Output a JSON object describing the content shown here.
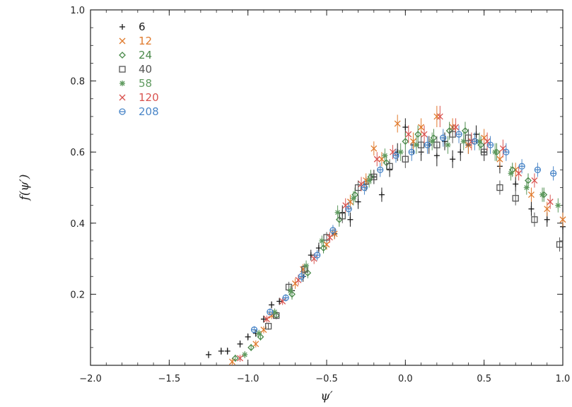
{
  "chart_data": {
    "type": "scatter",
    "title": "",
    "xlabel": "ψ′",
    "ylabel": "f(ψ′)",
    "xlim": [
      -2.0,
      1.0
    ],
    "ylim": [
      0.0,
      1.0
    ],
    "xticks": [
      -2.0,
      -1.5,
      -1.0,
      -0.5,
      0.0,
      0.5,
      1.0
    ],
    "xtick_labels": [
      "−2.0",
      "−1.5",
      "−1.0",
      "−0.5",
      "0.0",
      "0.5",
      "1.0"
    ],
    "yticks": [
      0.2,
      0.4,
      0.6,
      0.8,
      1.0
    ],
    "ytick_labels": [
      "0.2",
      "0.4",
      "0.6",
      "0.8",
      "1.0"
    ],
    "grid": false,
    "legend_position": "top-left",
    "error_bars": true,
    "series": [
      {
        "name": "6",
        "marker": "plus",
        "color": "#1a1a1a",
        "points": [
          [
            -1.25,
            0.03
          ],
          [
            -1.17,
            0.04
          ],
          [
            -1.13,
            0.04
          ],
          [
            -1.05,
            0.06
          ],
          [
            -1.0,
            0.08
          ],
          [
            -0.95,
            0.09
          ],
          [
            -0.9,
            0.13
          ],
          [
            -0.85,
            0.17
          ],
          [
            -0.8,
            0.18
          ],
          [
            -0.72,
            0.21
          ],
          [
            -0.65,
            0.25
          ],
          [
            -0.6,
            0.31
          ],
          [
            -0.55,
            0.33
          ],
          [
            -0.45,
            0.37
          ],
          [
            -0.4,
            0.43
          ],
          [
            -0.35,
            0.41
          ],
          [
            -0.3,
            0.46
          ],
          [
            -0.25,
            0.51
          ],
          [
            -0.2,
            0.53
          ],
          [
            -0.15,
            0.48
          ],
          [
            -0.1,
            0.55
          ],
          [
            -0.05,
            0.6
          ],
          [
            0.0,
            0.67
          ],
          [
            0.05,
            0.62
          ],
          [
            0.1,
            0.6
          ],
          [
            0.15,
            0.62
          ],
          [
            0.2,
            0.59
          ],
          [
            0.25,
            0.63
          ],
          [
            0.3,
            0.58
          ],
          [
            0.35,
            0.6
          ],
          [
            0.4,
            0.62
          ],
          [
            0.45,
            0.65
          ],
          [
            0.5,
            0.6
          ],
          [
            0.6,
            0.56
          ],
          [
            0.7,
            0.51
          ],
          [
            0.8,
            0.44
          ],
          [
            0.9,
            0.41
          ],
          [
            1.0,
            0.39
          ]
        ],
        "err": [
          0.01,
          0.01,
          0.01,
          0.01,
          0.01,
          0.01,
          0.01,
          0.01,
          0.01,
          0.01,
          0.015,
          0.015,
          0.015,
          0.015,
          0.02,
          0.02,
          0.02,
          0.02,
          0.02,
          0.02,
          0.02,
          0.025,
          0.025,
          0.025,
          0.025,
          0.025,
          0.03,
          0.025,
          0.025,
          0.025,
          0.025,
          0.025,
          0.025,
          0.02,
          0.02,
          0.02,
          0.02,
          0.02
        ]
      },
      {
        "name": "12",
        "marker": "cross",
        "color": "#e07a2c",
        "points": [
          [
            -1.1,
            0.01
          ],
          [
            -0.95,
            0.06
          ],
          [
            -0.9,
            0.1
          ],
          [
            -0.85,
            0.14
          ],
          [
            -0.7,
            0.23
          ],
          [
            -0.65,
            0.27
          ],
          [
            -0.5,
            0.34
          ],
          [
            -0.45,
            0.37
          ],
          [
            -0.35,
            0.46
          ],
          [
            -0.25,
            0.52
          ],
          [
            -0.2,
            0.61
          ],
          [
            -0.15,
            0.58
          ],
          [
            -0.05,
            0.68
          ],
          [
            0.05,
            0.63
          ],
          [
            0.1,
            0.67
          ],
          [
            0.2,
            0.7
          ],
          [
            0.3,
            0.67
          ],
          [
            0.4,
            0.62
          ],
          [
            0.5,
            0.64
          ],
          [
            0.6,
            0.58
          ],
          [
            0.7,
            0.55
          ],
          [
            0.8,
            0.48
          ],
          [
            0.9,
            0.44
          ],
          [
            1.0,
            0.41
          ]
        ],
        "err": [
          0.01,
          0.01,
          0.01,
          0.01,
          0.015,
          0.015,
          0.015,
          0.015,
          0.02,
          0.02,
          0.02,
          0.02,
          0.025,
          0.025,
          0.025,
          0.03,
          0.025,
          0.025,
          0.025,
          0.025,
          0.02,
          0.02,
          0.02,
          0.02
        ]
      },
      {
        "name": "24",
        "marker": "diamond",
        "color": "#4a8a4a",
        "points": [
          [
            -1.08,
            0.02
          ],
          [
            -0.98,
            0.05
          ],
          [
            -0.92,
            0.08
          ],
          [
            -0.82,
            0.14
          ],
          [
            -0.72,
            0.2
          ],
          [
            -0.62,
            0.26
          ],
          [
            -0.52,
            0.33
          ],
          [
            -0.42,
            0.41
          ],
          [
            -0.32,
            0.48
          ],
          [
            -0.22,
            0.53
          ],
          [
            -0.12,
            0.57
          ],
          [
            0.0,
            0.63
          ],
          [
            0.08,
            0.65
          ],
          [
            0.18,
            0.64
          ],
          [
            0.28,
            0.66
          ],
          [
            0.38,
            0.66
          ],
          [
            0.48,
            0.62
          ],
          [
            0.58,
            0.6
          ],
          [
            0.68,
            0.55
          ],
          [
            0.78,
            0.52
          ],
          [
            0.88,
            0.48
          ]
        ],
        "err": [
          0.01,
          0.01,
          0.01,
          0.01,
          0.015,
          0.015,
          0.015,
          0.02,
          0.02,
          0.02,
          0.02,
          0.025,
          0.025,
          0.025,
          0.025,
          0.025,
          0.025,
          0.025,
          0.02,
          0.02,
          0.02
        ]
      },
      {
        "name": "40",
        "marker": "square",
        "color": "#555555",
        "points": [
          [
            -0.87,
            0.11
          ],
          [
            -0.82,
            0.14
          ],
          [
            -0.74,
            0.22
          ],
          [
            -0.64,
            0.27
          ],
          [
            -0.5,
            0.36
          ],
          [
            -0.4,
            0.42
          ],
          [
            -0.3,
            0.5
          ],
          [
            -0.2,
            0.53
          ],
          [
            -0.1,
            0.56
          ],
          [
            0.0,
            0.58
          ],
          [
            0.1,
            0.62
          ],
          [
            0.2,
            0.62
          ],
          [
            0.3,
            0.65
          ],
          [
            0.4,
            0.64
          ],
          [
            0.5,
            0.6
          ],
          [
            0.6,
            0.5
          ],
          [
            0.7,
            0.47
          ],
          [
            0.82,
            0.41
          ],
          [
            0.98,
            0.34
          ]
        ],
        "err": [
          0.01,
          0.01,
          0.015,
          0.015,
          0.015,
          0.02,
          0.02,
          0.02,
          0.02,
          0.025,
          0.025,
          0.025,
          0.025,
          0.025,
          0.025,
          0.02,
          0.02,
          0.02,
          0.02
        ]
      },
      {
        "name": "58",
        "marker": "star",
        "color": "#5f9a5f",
        "points": [
          [
            -1.02,
            0.03
          ],
          [
            -0.93,
            0.09
          ],
          [
            -0.83,
            0.15
          ],
          [
            -0.73,
            0.21
          ],
          [
            -0.63,
            0.28
          ],
          [
            -0.53,
            0.35
          ],
          [
            -0.43,
            0.43
          ],
          [
            -0.33,
            0.47
          ],
          [
            -0.23,
            0.52
          ],
          [
            -0.13,
            0.59
          ],
          [
            -0.03,
            0.6
          ],
          [
            0.07,
            0.62
          ],
          [
            0.17,
            0.63
          ],
          [
            0.27,
            0.62
          ],
          [
            0.37,
            0.63
          ],
          [
            0.47,
            0.63
          ],
          [
            0.57,
            0.6
          ],
          [
            0.67,
            0.54
          ],
          [
            0.77,
            0.5
          ],
          [
            0.87,
            0.48
          ],
          [
            0.97,
            0.45
          ]
        ],
        "err": [
          0.01,
          0.01,
          0.01,
          0.015,
          0.015,
          0.015,
          0.02,
          0.02,
          0.02,
          0.02,
          0.025,
          0.025,
          0.025,
          0.025,
          0.025,
          0.025,
          0.025,
          0.02,
          0.02,
          0.02,
          0.02
        ]
      },
      {
        "name": "120",
        "marker": "cross",
        "color": "#d9534f",
        "points": [
          [
            -1.05,
            0.02
          ],
          [
            -0.88,
            0.13
          ],
          [
            -0.78,
            0.18
          ],
          [
            -0.68,
            0.24
          ],
          [
            -0.58,
            0.3
          ],
          [
            -0.48,
            0.36
          ],
          [
            -0.38,
            0.45
          ],
          [
            -0.28,
            0.51
          ],
          [
            -0.18,
            0.58
          ],
          [
            -0.08,
            0.6
          ],
          [
            0.02,
            0.65
          ],
          [
            0.12,
            0.65
          ],
          [
            0.22,
            0.7
          ],
          [
            0.32,
            0.67
          ],
          [
            0.42,
            0.63
          ],
          [
            0.52,
            0.63
          ],
          [
            0.62,
            0.61
          ],
          [
            0.72,
            0.54
          ],
          [
            0.82,
            0.52
          ],
          [
            0.92,
            0.46
          ]
        ],
        "err": [
          0.01,
          0.01,
          0.01,
          0.015,
          0.015,
          0.015,
          0.02,
          0.02,
          0.02,
          0.02,
          0.025,
          0.025,
          0.03,
          0.025,
          0.025,
          0.025,
          0.025,
          0.02,
          0.02,
          0.02
        ]
      },
      {
        "name": "208",
        "marker": "circle-plus",
        "color": "#4a86c8",
        "points": [
          [
            -0.96,
            0.1
          ],
          [
            -0.86,
            0.15
          ],
          [
            -0.76,
            0.19
          ],
          [
            -0.66,
            0.25
          ],
          [
            -0.56,
            0.31
          ],
          [
            -0.46,
            0.38
          ],
          [
            -0.36,
            0.44
          ],
          [
            -0.26,
            0.5
          ],
          [
            -0.16,
            0.55
          ],
          [
            -0.06,
            0.59
          ],
          [
            0.04,
            0.6
          ],
          [
            0.14,
            0.62
          ],
          [
            0.24,
            0.64
          ],
          [
            0.34,
            0.65
          ],
          [
            0.44,
            0.63
          ],
          [
            0.54,
            0.62
          ],
          [
            0.64,
            0.6
          ],
          [
            0.74,
            0.56
          ],
          [
            0.84,
            0.55
          ],
          [
            0.94,
            0.54
          ]
        ],
        "err": [
          0.01,
          0.01,
          0.01,
          0.015,
          0.015,
          0.015,
          0.02,
          0.02,
          0.02,
          0.02,
          0.025,
          0.025,
          0.025,
          0.025,
          0.025,
          0.025,
          0.025,
          0.02,
          0.02,
          0.02
        ]
      }
    ]
  }
}
